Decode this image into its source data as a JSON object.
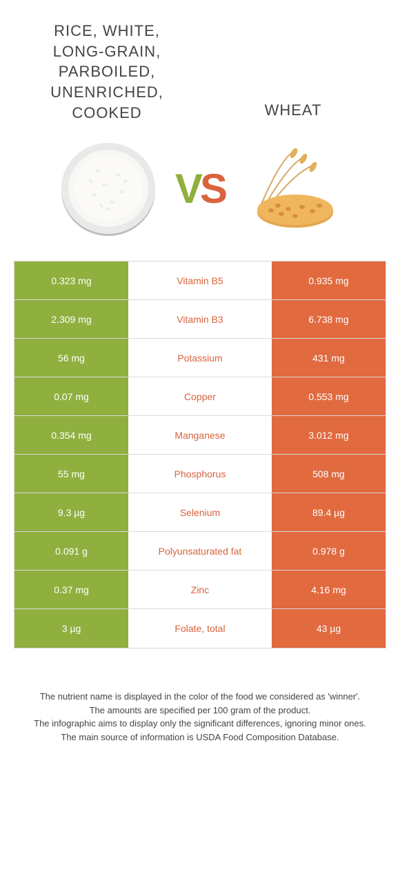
{
  "colors": {
    "left": "#8fb03e",
    "right": "#e16a3f",
    "white": "#ffffff",
    "mid_text_left": "#8fb03e",
    "mid_text_right": "#d9633c"
  },
  "titles": {
    "left": "RICE, WHITE, LONG-GRAIN, PARBOILED, UNENRICHED, COOKED",
    "right": "WHEAT"
  },
  "vs": {
    "v": "V",
    "s": "S"
  },
  "rows": [
    {
      "left": "0.323 mg",
      "mid": "Vitamin B5",
      "right": "0.935 mg",
      "winner": "right"
    },
    {
      "left": "2.309 mg",
      "mid": "Vitamin B3",
      "right": "6.738 mg",
      "winner": "right"
    },
    {
      "left": "56 mg",
      "mid": "Potassium",
      "right": "431 mg",
      "winner": "right"
    },
    {
      "left": "0.07 mg",
      "mid": "Copper",
      "right": "0.553 mg",
      "winner": "right"
    },
    {
      "left": "0.354 mg",
      "mid": "Manganese",
      "right": "3.012 mg",
      "winner": "right"
    },
    {
      "left": "55 mg",
      "mid": "Phosphorus",
      "right": "508 mg",
      "winner": "right"
    },
    {
      "left": "9.3 µg",
      "mid": "Selenium",
      "right": "89.4 µg",
      "winner": "right"
    },
    {
      "left": "0.091 g",
      "mid": "Polyunsaturated fat",
      "right": "0.978 g",
      "winner": "right"
    },
    {
      "left": "0.37 mg",
      "mid": "Zinc",
      "right": "4.16 mg",
      "winner": "right"
    },
    {
      "left": "3 µg",
      "mid": "Folate, total",
      "right": "43 µg",
      "winner": "right"
    }
  ],
  "footer": [
    "The nutrient name is displayed in the color of the food we considered as 'winner'.",
    "The amounts are specified per 100 gram of the product.",
    "The infographic aims to display only the significant differences, ignoring minor ones.",
    "The main source of information is USDA Food Composition Database."
  ]
}
